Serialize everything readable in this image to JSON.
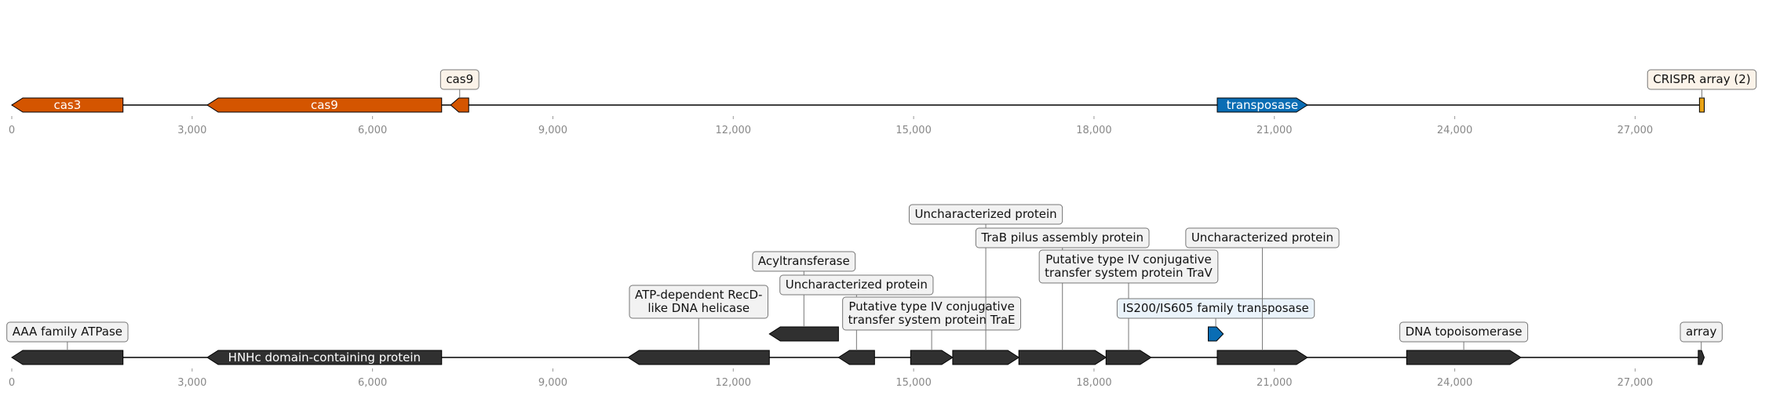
{
  "colors": {
    "cas": "#d45500",
    "transposase": "#0a6db4",
    "crispr": "#e8a317",
    "dark": "#303030",
    "backbone": "#000000",
    "callout_bg_track1": "#fbf3e9",
    "callout_bg_default": "#f2f2f2",
    "callout_bg_transposase": "#eaf3fb",
    "callout_border": "#777777",
    "tick_text": "#888888"
  },
  "axis": {
    "min": 0,
    "max": 28300,
    "ticks": [
      0,
      3000,
      6000,
      9000,
      12000,
      15000,
      18000,
      21000,
      24000,
      27000
    ],
    "tick_labels": [
      "0",
      "3,000",
      "6,000",
      "9,000",
      "12,000",
      "15,000",
      "18,000",
      "21,000",
      "24,000",
      "27,000"
    ]
  },
  "tracks": [
    {
      "id": "track-1",
      "length": 28150,
      "genes": [
        {
          "start": 0,
          "end": 1850,
          "strand": -1,
          "label": "cas3",
          "color": "cas"
        },
        {
          "start": 3250,
          "end": 7150,
          "strand": -1,
          "label": "cas9",
          "color": "cas"
        },
        {
          "start": 7300,
          "end": 7600,
          "strand": -1,
          "label": "",
          "color": "cas",
          "callout": "cas9",
          "callout_level": 1
        },
        {
          "start": 20050,
          "end": 21550,
          "strand": 1,
          "label": "transposase",
          "color": "transposase"
        },
        {
          "start": 28070,
          "end": 28150,
          "strand": 0,
          "label": "",
          "color": "crispr",
          "callout": "CRISPR array (2)",
          "callout_level": 1
        }
      ]
    },
    {
      "id": "track-2",
      "length": 28150,
      "genes": [
        {
          "start": 0,
          "end": 1850,
          "strand": -1,
          "label": "",
          "color": "dark",
          "callout": "AAA family ATPase",
          "callout_level": 1
        },
        {
          "start": 3250,
          "end": 7150,
          "strand": -1,
          "label": "HNHc domain-containing protein",
          "color": "dark"
        },
        {
          "start": 10250,
          "end": 12600,
          "strand": -1,
          "label": "",
          "color": "dark",
          "callout": "ATP-dependent RecD-\nlike DNA helicase",
          "callout_level": 2
        },
        {
          "start": 12600,
          "end": 13750,
          "strand": -1,
          "label": "",
          "color": "dark",
          "callout": "Acyltransferase",
          "callout_level": 4,
          "raised": true
        },
        {
          "start": 13750,
          "end": 14350,
          "strand": -1,
          "label": "",
          "color": "dark",
          "callout": "Uncharacterized protein",
          "callout_level": 3
        },
        {
          "start": 14950,
          "end": 15650,
          "strand": 1,
          "label": "",
          "color": "dark",
          "callout": "Putative type IV conjugative\ntransfer system protein TraE",
          "callout_level": 1.5
        },
        {
          "start": 15650,
          "end": 16750,
          "strand": 1,
          "label": "",
          "color": "dark",
          "callout": "Uncharacterized protein",
          "callout_level": 6
        },
        {
          "start": 16750,
          "end": 18200,
          "strand": 1,
          "label": "",
          "color": "dark",
          "callout": "TraB pilus assembly protein",
          "callout_level": 5
        },
        {
          "start": 18200,
          "end": 18950,
          "strand": 1,
          "label": "",
          "color": "dark",
          "callout": "Putative type IV conjugative\ntransfer system protein TraV",
          "callout_level": 3.5
        },
        {
          "start": 19900,
          "end": 20150,
          "strand": 1,
          "label": "",
          "color": "transposase",
          "callout": "IS200/IS605 family transposase",
          "callout_level": 2,
          "raised": true
        },
        {
          "start": 20050,
          "end": 21550,
          "strand": 1,
          "label": "",
          "color": "dark",
          "callout": "Uncharacterized protein",
          "callout_level": 5
        },
        {
          "start": 23200,
          "end": 25100,
          "strand": 1,
          "label": "",
          "color": "dark",
          "callout": "DNA topoisomerase",
          "callout_level": 1
        },
        {
          "start": 28050,
          "end": 28150,
          "strand": 1,
          "label": "",
          "color": "dark",
          "callout": "array",
          "callout_level": 1
        }
      ]
    }
  ]
}
